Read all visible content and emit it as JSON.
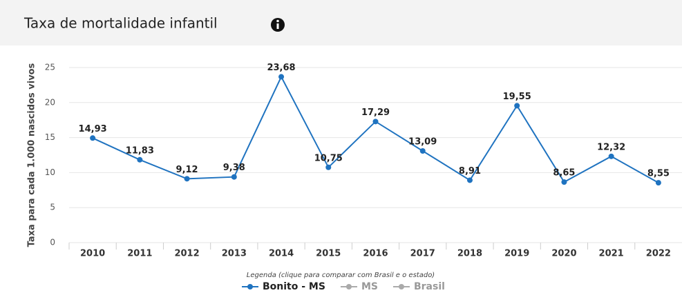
{
  "chart_data": {
    "type": "line",
    "title": "Taxa de mortalidade infantil",
    "y_label": "Taxa para cada 1.000 nascidos vivos",
    "legend_title": "Legenda (clique para comparar com Brasil e o estado)",
    "categories": [
      "2010",
      "2011",
      "2012",
      "2013",
      "2014",
      "2015",
      "2016",
      "2017",
      "2018",
      "2019",
      "2020",
      "2021",
      "2022"
    ],
    "series": [
      {
        "name": "Bonito - MS",
        "color": "#1f73c0",
        "values": [
          14.93,
          11.83,
          9.12,
          9.38,
          23.68,
          10.75,
          17.29,
          13.09,
          8.91,
          19.55,
          8.65,
          12.32,
          8.55
        ],
        "value_labels": [
          "14,93",
          "11,83",
          "9,12",
          "9,38",
          "23,68",
          "10,75",
          "17,29",
          "13,09",
          "8,91",
          "19,55",
          "8,65",
          "12,32",
          "8,55"
        ]
      }
    ],
    "inactive_legend": [
      {
        "name": "MS",
        "color": "#aaaaaa"
      },
      {
        "name": "Brasil",
        "color": "#aaaaaa"
      }
    ],
    "ylim": [
      0,
      25
    ],
    "yticks": [
      0,
      5,
      10,
      15,
      20,
      25
    ],
    "grid": true
  }
}
